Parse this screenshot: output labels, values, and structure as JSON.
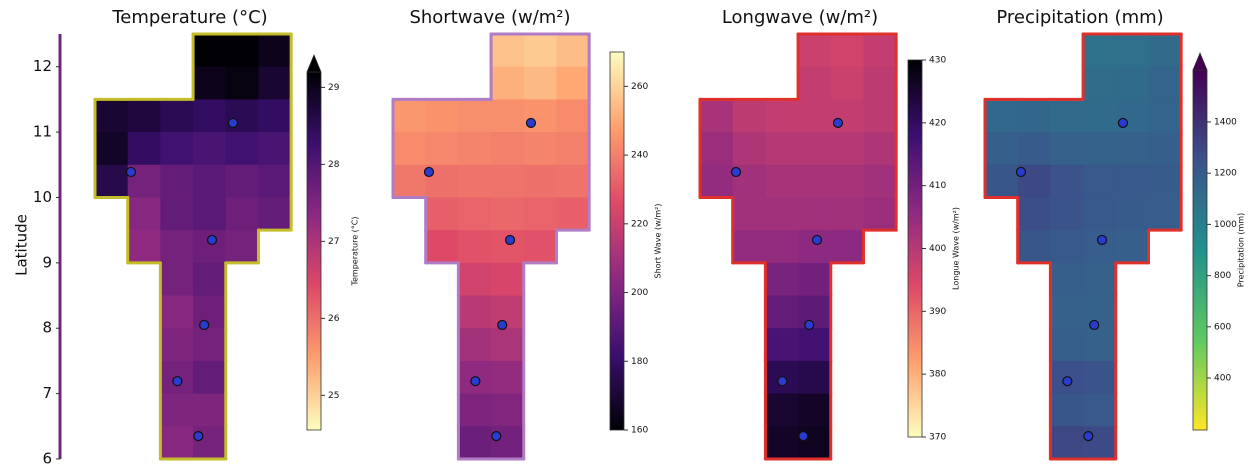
{
  "chart_data": [
    {
      "type": "gridmap",
      "title": "Temperature (°C)",
      "y_label": "Latitude",
      "ylim": [
        6,
        12.5
      ],
      "yticks": [
        6,
        7,
        8,
        9,
        10,
        11,
        12
      ],
      "colorbar_label": "Temperature (°C)",
      "colormap": "magma_r",
      "clim": [
        24.55,
        29.2
      ],
      "cbar_ticks": [
        25,
        26,
        27,
        28,
        29
      ],
      "extend": "max",
      "outline_color": "#c4bd2a",
      "grid": [
        [
          null,
          null,
          null,
          29.2,
          29.3,
          29.0
        ],
        [
          null,
          null,
          null,
          29.0,
          29.1,
          28.8
        ],
        [
          28.8,
          28.7,
          28.5,
          28.4,
          28.5,
          28.4
        ],
        [
          28.9,
          28.4,
          28.2,
          28.1,
          28.2,
          28.1
        ],
        [
          28.6,
          27.6,
          27.8,
          27.9,
          27.8,
          27.9
        ],
        [
          null,
          27.4,
          27.8,
          27.9,
          27.7,
          27.8
        ],
        [
          null,
          27.3,
          27.6,
          27.7,
          27.6,
          null
        ],
        [
          null,
          null,
          27.6,
          27.8,
          null,
          null
        ],
        [
          null,
          null,
          27.4,
          27.7,
          null,
          null
        ],
        [
          null,
          null,
          27.5,
          27.6,
          null,
          null
        ],
        [
          null,
          null,
          27.6,
          27.8,
          null,
          null
        ],
        [
          null,
          null,
          27.5,
          27.5,
          null,
          null
        ],
        [
          null,
          null,
          27.4,
          27.6,
          null,
          null
        ]
      ]
    },
    {
      "type": "gridmap",
      "title": "Shortwave (w/m²)",
      "colorbar_label": "Short Wave (w/m²)",
      "colormap": "magma",
      "clim": [
        160,
        270
      ],
      "cbar_ticks": [
        160,
        180,
        200,
        220,
        240,
        260
      ],
      "outline_color": "#b07cc6",
      "grid": [
        [
          null,
          null,
          null,
          256,
          258,
          255
        ],
        [
          null,
          null,
          null,
          252,
          254,
          250
        ],
        [
          246,
          245,
          244,
          244,
          245,
          243
        ],
        [
          243,
          242,
          241,
          240,
          241,
          240
        ],
        [
          238,
          236,
          237,
          237,
          236,
          237
        ],
        [
          null,
          232,
          233,
          234,
          233,
          232
        ],
        [
          null,
          226,
          228,
          229,
          228,
          null
        ],
        [
          null,
          null,
          222,
          224,
          null,
          null
        ],
        [
          null,
          null,
          216,
          218,
          null,
          null
        ],
        [
          null,
          null,
          210,
          212,
          null,
          null
        ],
        [
          null,
          null,
          205,
          206,
          null,
          null
        ],
        [
          null,
          null,
          200,
          201,
          null,
          null
        ],
        [
          null,
          null,
          195,
          197,
          null,
          null
        ]
      ]
    },
    {
      "type": "gridmap",
      "title": "Longwave (w/m²)",
      "colorbar_label": "Longue Wave (w/m²)",
      "colormap": "magma_r",
      "clim": [
        370,
        430
      ],
      "cbar_ticks": [
        370,
        380,
        390,
        400,
        410,
        420,
        430
      ],
      "outline_color": "#e0302c",
      "grid": [
        [
          null,
          null,
          null,
          397,
          396,
          398
        ],
        [
          null,
          null,
          null,
          398,
          397,
          399
        ],
        [
          402,
          399,
          398,
          398,
          398,
          399
        ],
        [
          404,
          401,
          400,
          400,
          400,
          401
        ],
        [
          405,
          403,
          402,
          402,
          402,
          403
        ],
        [
          null,
          403,
          403,
          403,
          403,
          404
        ],
        [
          null,
          405,
          405,
          406,
          406,
          null
        ],
        [
          null,
          null,
          409,
          410,
          null,
          null
        ],
        [
          null,
          null,
          412,
          413,
          null,
          null
        ],
        [
          null,
          null,
          416,
          417,
          null,
          null
        ],
        [
          null,
          null,
          421,
          422,
          null,
          null
        ],
        [
          null,
          null,
          425,
          426,
          null,
          null
        ],
        [
          null,
          null,
          426,
          427,
          null,
          null
        ]
      ]
    },
    {
      "type": "gridmap",
      "title": "Precipitation (mm)",
      "colorbar_label": "Precipitation (mm)",
      "colormap": "viridis_r",
      "clim": [
        197,
        1603
      ],
      "cbar_ticks": [
        400,
        600,
        800,
        1000,
        1200,
        1400
      ],
      "extend": "max",
      "outline_color": "#e0302c",
      "grid": [
        [
          null,
          null,
          null,
          1080,
          1090,
          1120
        ],
        [
          null,
          null,
          null,
          1100,
          1110,
          1150
        ],
        [
          1130,
          1140,
          1120,
          1110,
          1130,
          1150
        ],
        [
          1180,
          1200,
          1170,
          1160,
          1170,
          1180
        ],
        [
          1230,
          1290,
          1250,
          1220,
          1210,
          1200
        ],
        [
          null,
          1270,
          1240,
          1210,
          1200,
          1190
        ],
        [
          null,
          1230,
          1210,
          1190,
          1180,
          null
        ],
        [
          null,
          null,
          1180,
          1170,
          null,
          null
        ],
        [
          null,
          null,
          1170,
          1160,
          null,
          null
        ],
        [
          null,
          null,
          1180,
          1170,
          null,
          null
        ],
        [
          null,
          null,
          1260,
          1240,
          null,
          null
        ],
        [
          null,
          null,
          1230,
          1220,
          null,
          null
        ],
        [
          null,
          null,
          1300,
          1280,
          null,
          null
        ]
      ]
    }
  ],
  "stations": [
    {
      "lat": 11.14,
      "lon": 2.86
    },
    {
      "lat": 10.39,
      "lon": 1.3
    },
    {
      "lat": 9.35,
      "lon": 2.54
    },
    {
      "lat": 8.05,
      "lon": 2.42
    },
    {
      "lat": 7.19,
      "lon": 2.01
    },
    {
      "lat": 6.35,
      "lon": 2.33
    }
  ]
}
